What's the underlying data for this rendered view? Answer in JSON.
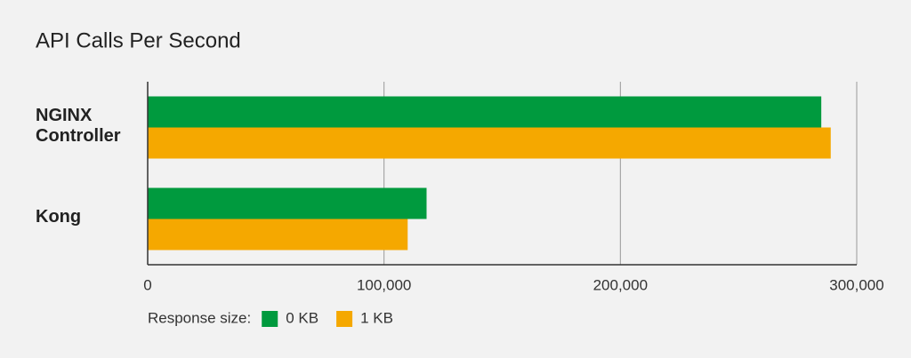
{
  "chart_data": {
    "type": "hbar",
    "title": "API Calls Per Second",
    "categories": [
      "NGINX Controller",
      "Kong"
    ],
    "series": [
      {
        "name": "0 KB",
        "color": "#009a3e",
        "values": [
          285000,
          118000
        ]
      },
      {
        "name": "1 KB",
        "color": "#f5a800",
        "values": [
          289000,
          110000
        ]
      }
    ],
    "xlim": [
      0,
      300000
    ],
    "xticks": [
      0,
      {
        "value": 100000,
        "label": "100,000"
      },
      {
        "value": 200000,
        "label": "200,000"
      },
      {
        "value": 300000,
        "label": "300,000"
      }
    ],
    "grid": true,
    "legend_title": "Response size:",
    "legend_position": "bottom"
  }
}
